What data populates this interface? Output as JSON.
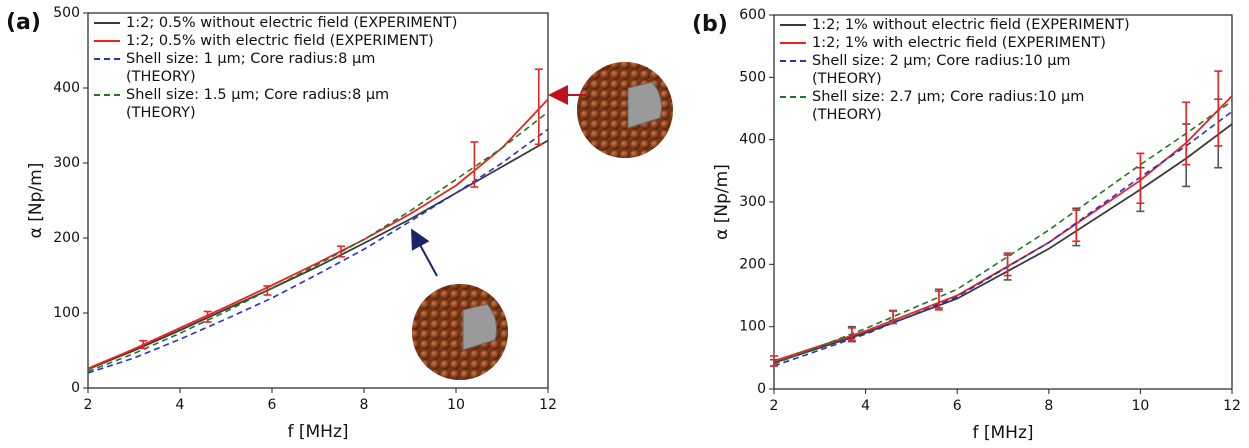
{
  "chart_data": [
    {
      "type": "line",
      "panel_label": "(a)",
      "x_label": "f [MHz]",
      "y_label": "α [Np/m]",
      "x": [
        2,
        3,
        4,
        5,
        6,
        7,
        8,
        9,
        10,
        11,
        12
      ],
      "xlim": [
        2,
        12
      ],
      "xticks": [
        2,
        4,
        6,
        8,
        10,
        12
      ],
      "ylim": [
        0,
        500
      ],
      "yticks": [
        0,
        100,
        200,
        300,
        400,
        500
      ],
      "series": [
        {
          "name": "1:2; 0.5% without electric field (EXPERIMENT)",
          "color": "#3a3a3a",
          "dash": false,
          "values": [
            25,
            50,
            77,
            105,
            133,
            162,
            193,
            225,
            260,
            295,
            330
          ]
        },
        {
          "name": "1:2; 0.5% with electric field (EXPERIMENT)",
          "color": "#ee2222",
          "dash": false,
          "values": [
            26,
            52,
            80,
            108,
            137,
            167,
            198,
            232,
            270,
            320,
            385
          ]
        },
        {
          "name": "Shell size: 1 μm; Core radius:8 μm\n(THEORY)",
          "color": "#2233cc",
          "dash": true,
          "values": [
            20,
            40,
            65,
            92,
            120,
            152,
            185,
            222,
            260,
            300,
            345
          ]
        },
        {
          "name": "Shell size: 1.5 μm; Core radius:8 μm\n(THEORY)",
          "color": "#227722",
          "dash": true,
          "values": [
            22,
            46,
            73,
            102,
            133,
            165,
            198,
            236,
            278,
            320,
            368
          ]
        }
      ],
      "error_bars": [
        {
          "color": "#ee2222",
          "x": [
            3.2,
            4.6,
            5.9,
            7.5,
            10.4,
            11.8
          ],
          "values": [
            58,
            95,
            130,
            182,
            298,
            375
          ],
          "errors": [
            5,
            7,
            6,
            7,
            30,
            50
          ]
        }
      ]
    },
    {
      "type": "line",
      "panel_label": "(b)",
      "x_label": "f [MHz]",
      "y_label": "α [Np/m]",
      "x": [
        2,
        4,
        6,
        8,
        10,
        11,
        12
      ],
      "xlim": [
        2,
        12
      ],
      "xticks": [
        2,
        4,
        6,
        8,
        10,
        12
      ],
      "ylim": [
        0,
        600
      ],
      "yticks": [
        0,
        100,
        200,
        300,
        400,
        500,
        600
      ],
      "series": [
        {
          "name": "1:2; 1% without electric field (EXPERIMENT)",
          "color": "#3a3a3a",
          "dash": false,
          "values": [
            42,
            90,
            145,
            225,
            320,
            370,
            425
          ]
        },
        {
          "name": "1:2; 1% with electric field (EXPERIMENT)",
          "color": "#ee2222",
          "dash": false,
          "values": [
            45,
            93,
            150,
            235,
            335,
            395,
            470
          ]
        },
        {
          "name": "Shell size: 2 μm; Core radius:10 μm\n(THEORY)",
          "color": "#2233cc",
          "dash": true,
          "values": [
            37,
            88,
            148,
            235,
            340,
            390,
            445
          ]
        },
        {
          "name": "Shell size: 2.7 μm; Core radius:10 μm\n(THEORY)",
          "color": "#227722",
          "dash": true,
          "values": [
            40,
            97,
            160,
            255,
            360,
            410,
            462
          ]
        }
      ],
      "error_bars": [
        {
          "color": "#555555",
          "x": [
            2,
            3.7,
            4.6,
            5.6,
            7.1,
            8.6,
            10,
            11,
            11.7
          ],
          "values": [
            42,
            88,
            118,
            145,
            195,
            260,
            320,
            375,
            410
          ],
          "errors": [
            5,
            12,
            8,
            15,
            20,
            30,
            35,
            50,
            55
          ]
        },
        {
          "color": "#ee2222",
          "x": [
            2,
            3.7,
            4.6,
            5.6,
            7.1,
            8.6,
            10,
            11,
            11.7
          ],
          "values": [
            45,
            88,
            115,
            142,
            200,
            262,
            338,
            410,
            450
          ],
          "errors": [
            8,
            10,
            10,
            15,
            18,
            25,
            40,
            50,
            60
          ]
        }
      ]
    }
  ]
}
